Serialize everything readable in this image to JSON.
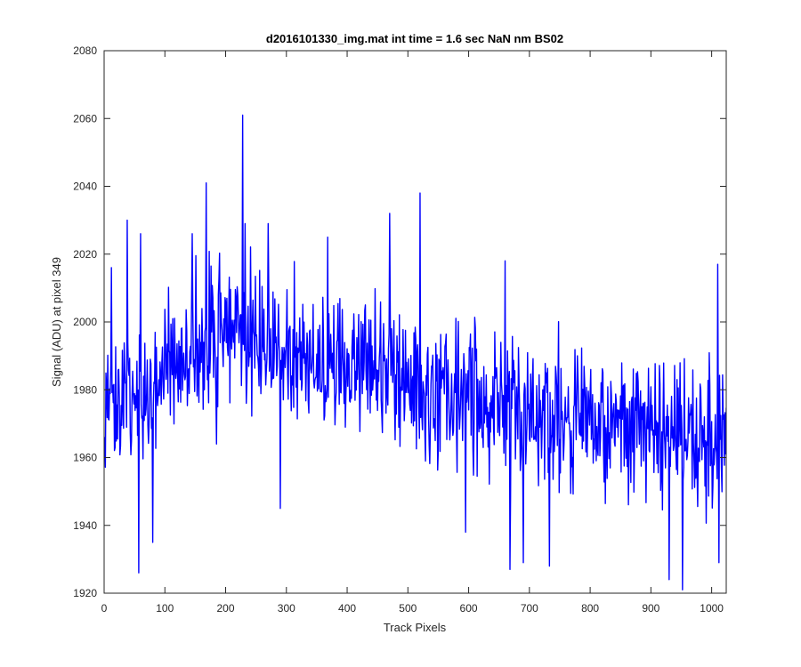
{
  "chart_data": {
    "type": "line",
    "title": "d2016101330_img.mat int time = 1.6 sec  NaN nm BS02",
    "xlabel": "Track Pixels",
    "ylabel": "Signal (ADU) at pixel 349",
    "xlim": [
      0,
      1024
    ],
    "ylim": [
      1920,
      2080
    ],
    "x_ticks": [
      0,
      100,
      200,
      300,
      400,
      500,
      600,
      700,
      800,
      900,
      1000
    ],
    "y_ticks": [
      1920,
      1940,
      1960,
      1980,
      2000,
      2020,
      2040,
      2060,
      2080
    ],
    "grid": false,
    "legend": "none",
    "series": [
      {
        "color": "#0000ff",
        "x_start": 1,
        "x_step": 1,
        "trend_x": [
          0,
          60,
          100,
          150,
          200,
          250,
          300,
          350,
          400,
          450,
          500,
          550,
          600,
          650,
          700,
          750,
          800,
          850,
          900,
          950,
          1000,
          1024
        ],
        "trend_y": [
          1977,
          1978,
          1985,
          1993,
          1997,
          1996,
          1992,
          1990,
          1987,
          1985,
          1983,
          1980,
          1978,
          1976,
          1974,
          1973,
          1971,
          1970,
          1968,
          1965,
          1966,
          1964
        ],
        "noise_amplitude": 16,
        "peaks": [
          {
            "x": 12,
            "y": 2016
          },
          {
            "x": 38,
            "y": 2030
          },
          {
            "x": 57,
            "y": 1926
          },
          {
            "x": 60,
            "y": 2026
          },
          {
            "x": 80,
            "y": 1935
          },
          {
            "x": 145,
            "y": 2026
          },
          {
            "x": 168,
            "y": 2041
          },
          {
            "x": 185,
            "y": 1964
          },
          {
            "x": 228,
            "y": 2061
          },
          {
            "x": 232,
            "y": 2029
          },
          {
            "x": 270,
            "y": 2029
          },
          {
            "x": 290,
            "y": 1945
          },
          {
            "x": 368,
            "y": 2025
          },
          {
            "x": 470,
            "y": 2032
          },
          {
            "x": 520,
            "y": 2038
          },
          {
            "x": 595,
            "y": 1938
          },
          {
            "x": 660,
            "y": 2018
          },
          {
            "x": 668,
            "y": 1927
          },
          {
            "x": 690,
            "y": 1929
          },
          {
            "x": 733,
            "y": 1928
          },
          {
            "x": 930,
            "y": 1924
          },
          {
            "x": 952,
            "y": 1921
          },
          {
            "x": 1010,
            "y": 2017
          },
          {
            "x": 1012,
            "y": 1929
          }
        ]
      }
    ]
  }
}
